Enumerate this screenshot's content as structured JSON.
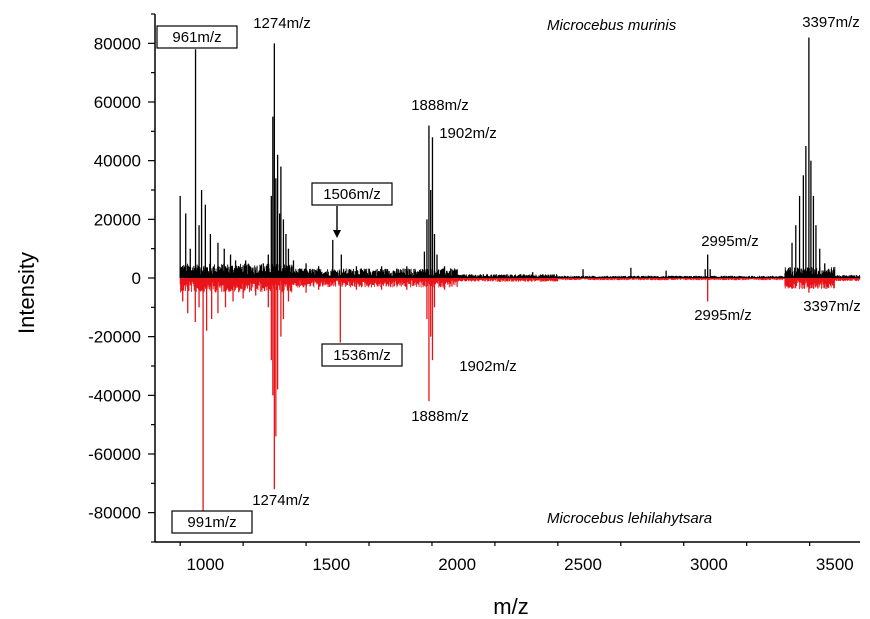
{
  "chart_data": {
    "type": "line",
    "xlabel": "m/z",
    "ylabel": "Intensity",
    "xlim": [
      800,
      3600
    ],
    "ylim": [
      -90000,
      90000
    ],
    "x_ticks": [
      1000,
      1500,
      2000,
      2500,
      3000,
      3500
    ],
    "y_ticks": [
      80000,
      60000,
      40000,
      20000,
      0,
      -20000,
      -40000,
      -60000,
      -80000
    ],
    "grid": false,
    "legend": "none",
    "species_top": "Microcebus murinis",
    "species_bottom": "Microcebus lehilahytsara",
    "series": [
      {
        "color": "#000000",
        "peaks": [
          {
            "x": 900,
            "y": 28000
          },
          {
            "x": 922,
            "y": 22000
          },
          {
            "x": 940,
            "y": 10000
          },
          {
            "x": 961,
            "y": 78000
          },
          {
            "x": 975,
            "y": 18000
          },
          {
            "x": 985,
            "y": 30000
          },
          {
            "x": 1000,
            "y": 25000
          },
          {
            "x": 1020,
            "y": 15000
          },
          {
            "x": 1050,
            "y": 12000
          },
          {
            "x": 1075,
            "y": 10000
          },
          {
            "x": 1100,
            "y": 8000
          },
          {
            "x": 1120,
            "y": 6000
          },
          {
            "x": 1160,
            "y": 6000
          },
          {
            "x": 1230,
            "y": 5000
          },
          {
            "x": 1250,
            "y": 8000
          },
          {
            "x": 1262,
            "y": 28000
          },
          {
            "x": 1268,
            "y": 55000
          },
          {
            "x": 1274,
            "y": 80000
          },
          {
            "x": 1280,
            "y": 34000
          },
          {
            "x": 1287,
            "y": 42000
          },
          {
            "x": 1295,
            "y": 22000
          },
          {
            "x": 1300,
            "y": 38000
          },
          {
            "x": 1310,
            "y": 20000
          },
          {
            "x": 1320,
            "y": 15000
          },
          {
            "x": 1330,
            "y": 10000
          },
          {
            "x": 1350,
            "y": 6000
          },
          {
            "x": 1400,
            "y": 5000
          },
          {
            "x": 1450,
            "y": 4000
          },
          {
            "x": 1506,
            "y": 13000
          },
          {
            "x": 1540,
            "y": 8000
          },
          {
            "x": 1600,
            "y": 4000
          },
          {
            "x": 1700,
            "y": 4000
          },
          {
            "x": 1800,
            "y": 4000
          },
          {
            "x": 1870,
            "y": 9000
          },
          {
            "x": 1880,
            "y": 20000
          },
          {
            "x": 1888,
            "y": 52000
          },
          {
            "x": 1895,
            "y": 30000
          },
          {
            "x": 1902,
            "y": 48000
          },
          {
            "x": 1910,
            "y": 15000
          },
          {
            "x": 1920,
            "y": 8000
          },
          {
            "x": 1950,
            "y": 4000
          },
          {
            "x": 2000,
            "y": 3000
          },
          {
            "x": 2300,
            "y": 2000
          },
          {
            "x": 2500,
            "y": 3000
          },
          {
            "x": 2690,
            "y": 3500
          },
          {
            "x": 2830,
            "y": 2500
          },
          {
            "x": 2985,
            "y": 3000
          },
          {
            "x": 2995,
            "y": 8000
          },
          {
            "x": 3005,
            "y": 3000
          },
          {
            "x": 3330,
            "y": 12000
          },
          {
            "x": 3345,
            "y": 18000
          },
          {
            "x": 3360,
            "y": 28000
          },
          {
            "x": 3375,
            "y": 35000
          },
          {
            "x": 3385,
            "y": 45000
          },
          {
            "x": 3397,
            "y": 82000
          },
          {
            "x": 3405,
            "y": 40000
          },
          {
            "x": 3415,
            "y": 28000
          },
          {
            "x": 3425,
            "y": 18000
          },
          {
            "x": 3440,
            "y": 10000
          },
          {
            "x": 3460,
            "y": 5000
          }
        ]
      },
      {
        "color": "#e8141a",
        "peaks": [
          {
            "x": 910,
            "y": -8000
          },
          {
            "x": 930,
            "y": -12000
          },
          {
            "x": 960,
            "y": -15000
          },
          {
            "x": 975,
            "y": -10000
          },
          {
            "x": 991,
            "y": -80000
          },
          {
            "x": 1005,
            "y": -18000
          },
          {
            "x": 1025,
            "y": -14000
          },
          {
            "x": 1050,
            "y": -12000
          },
          {
            "x": 1080,
            "y": -10000
          },
          {
            "x": 1110,
            "y": -8000
          },
          {
            "x": 1150,
            "y": -7000
          },
          {
            "x": 1200,
            "y": -6000
          },
          {
            "x": 1250,
            "y": -10000
          },
          {
            "x": 1262,
            "y": -28000
          },
          {
            "x": 1268,
            "y": -40000
          },
          {
            "x": 1274,
            "y": -72000
          },
          {
            "x": 1280,
            "y": -54000
          },
          {
            "x": 1287,
            "y": -38000
          },
          {
            "x": 1300,
            "y": -20000
          },
          {
            "x": 1310,
            "y": -14000
          },
          {
            "x": 1330,
            "y": -8000
          },
          {
            "x": 1400,
            "y": -5000
          },
          {
            "x": 1450,
            "y": -4000
          },
          {
            "x": 1536,
            "y": -22000
          },
          {
            "x": 1600,
            "y": -4000
          },
          {
            "x": 1700,
            "y": -4000
          },
          {
            "x": 1800,
            "y": -4000
          },
          {
            "x": 1880,
            "y": -14000
          },
          {
            "x": 1888,
            "y": -42000
          },
          {
            "x": 1895,
            "y": -20000
          },
          {
            "x": 1902,
            "y": -28000
          },
          {
            "x": 1910,
            "y": -10000
          },
          {
            "x": 1950,
            "y": -4000
          },
          {
            "x": 2000,
            "y": -3000
          },
          {
            "x": 2995,
            "y": -8000
          },
          {
            "x": 3397,
            "y": -5000
          }
        ]
      }
    ],
    "annotations": [
      {
        "text": "961m/z",
        "boxed": true
      },
      {
        "text": "1274m/z",
        "boxed": false
      },
      {
        "text": "1506m/z",
        "boxed": true
      },
      {
        "text": "1888m/z",
        "boxed": false
      },
      {
        "text": "1902m/z",
        "boxed": false
      },
      {
        "text": "2995m/z",
        "boxed": false
      },
      {
        "text": "3397m/z",
        "boxed": false
      },
      {
        "text": "991m/z",
        "boxed": true
      },
      {
        "text": "1274m/z",
        "boxed": false
      },
      {
        "text": "1536m/z",
        "boxed": true
      },
      {
        "text": "1888m/z",
        "boxed": false
      },
      {
        "text": "1902m/z",
        "boxed": false
      },
      {
        "text": "2995m/z",
        "boxed": false
      },
      {
        "text": "3397m/z",
        "boxed": false
      }
    ]
  }
}
